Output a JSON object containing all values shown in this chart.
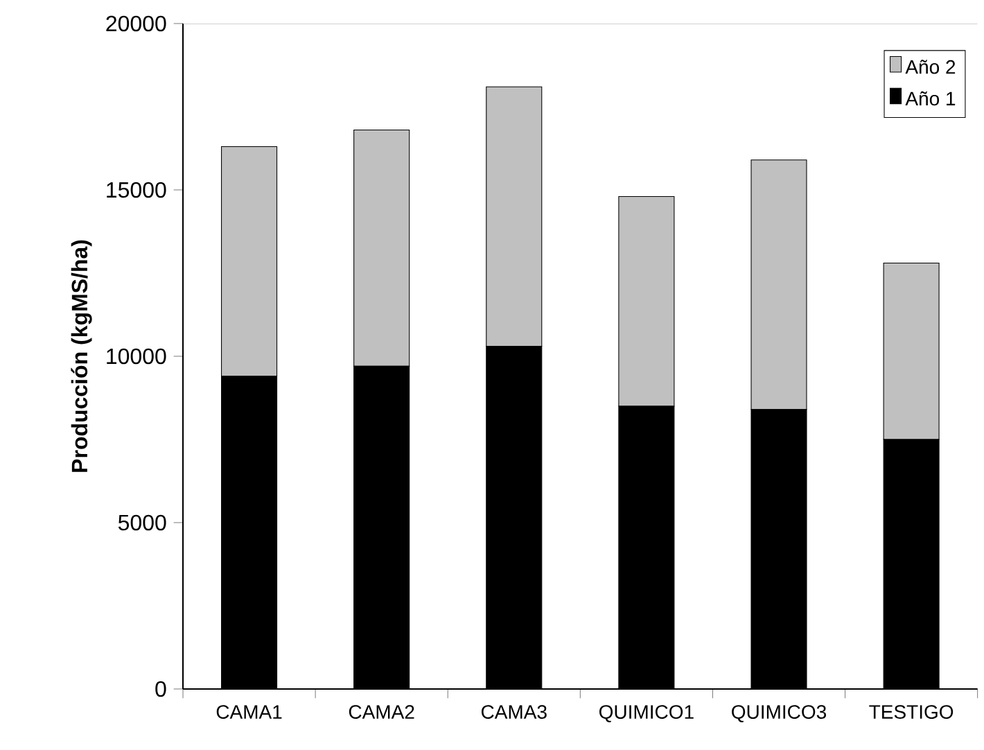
{
  "chart_data": {
    "type": "bar",
    "stacked": true,
    "ylabel": "Producción (kgMS/ha)",
    "categories": [
      "CAMA1",
      "CAMA2",
      "CAMA3",
      "QUIMICO1",
      "QUIMICO3",
      "TESTIGO"
    ],
    "series": [
      {
        "name": "Año 1",
        "color": "#000000",
        "values": [
          9400,
          9700,
          10300,
          8500,
          8400,
          7500
        ]
      },
      {
        "name": "Año 2",
        "color": "#c0c0c0",
        "values": [
          6900,
          7100,
          7800,
          6300,
          7500,
          5300
        ]
      }
    ],
    "ylim": [
      0,
      20000
    ],
    "yticks": [
      0,
      5000,
      10000,
      15000,
      20000
    ],
    "legend": "top right"
  }
}
